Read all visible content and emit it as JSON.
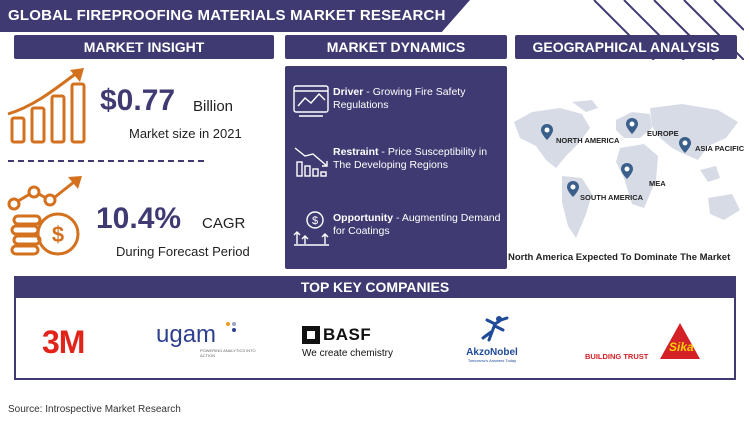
{
  "title": "GLOBAL FIREPROOFING MATERIALS MARKET RESEARCH REPORT",
  "sections": {
    "insight": "MARKET INSIGHT",
    "dynamics": "MARKET DYNAMICS",
    "geo": "GEOGRAPHICAL ANALYSIS",
    "companies": "TOP KEY COMPANIES"
  },
  "insight": {
    "market_value": "$0.77",
    "market_unit": "Billion",
    "market_caption": "Market size in 2021",
    "cagr_value": "10.4%",
    "cagr_label": "CAGR",
    "cagr_caption": "During Forecast Period"
  },
  "dynamics": [
    {
      "label": "Driver",
      "text": " - Growing Fire Safety Regulations",
      "icon": "chart-dashboard-icon"
    },
    {
      "label": "Restraint",
      "text": " - Price Susceptibility in The Developing Regions",
      "icon": "declining-chart-icon"
    },
    {
      "label": "Opportunity",
      "text": " - Augmenting Demand for Coatings",
      "icon": "rising-dollar-icon"
    }
  ],
  "geo": {
    "regions": [
      "NORTH AMERICA",
      "EUROPE",
      "ASIA PACIFIC",
      "MEA",
      "SOUTH AMERICA"
    ],
    "caption": "North America Expected To Dominate The Market"
  },
  "companies": {
    "c3m": "3M",
    "ugam": "ugam",
    "ugam_tag": "POWERING ANALYTICS INTO ACTION",
    "basf": "BASF",
    "basf_tag": "We create chemistry",
    "akzo": "AkzoNobel",
    "akzo_tag": "Tomorrow's Answers Today",
    "sika_tag": "BUILDING TRUST",
    "sika": "Sika"
  },
  "source": "Source: Introspective Market Research",
  "colors": {
    "navy": "#3f3a72",
    "orange": "#d4711f",
    "red3m": "#e2231a",
    "sika": "#d42027",
    "akzo": "#1f4a97",
    "map": "#d7dbe6"
  }
}
